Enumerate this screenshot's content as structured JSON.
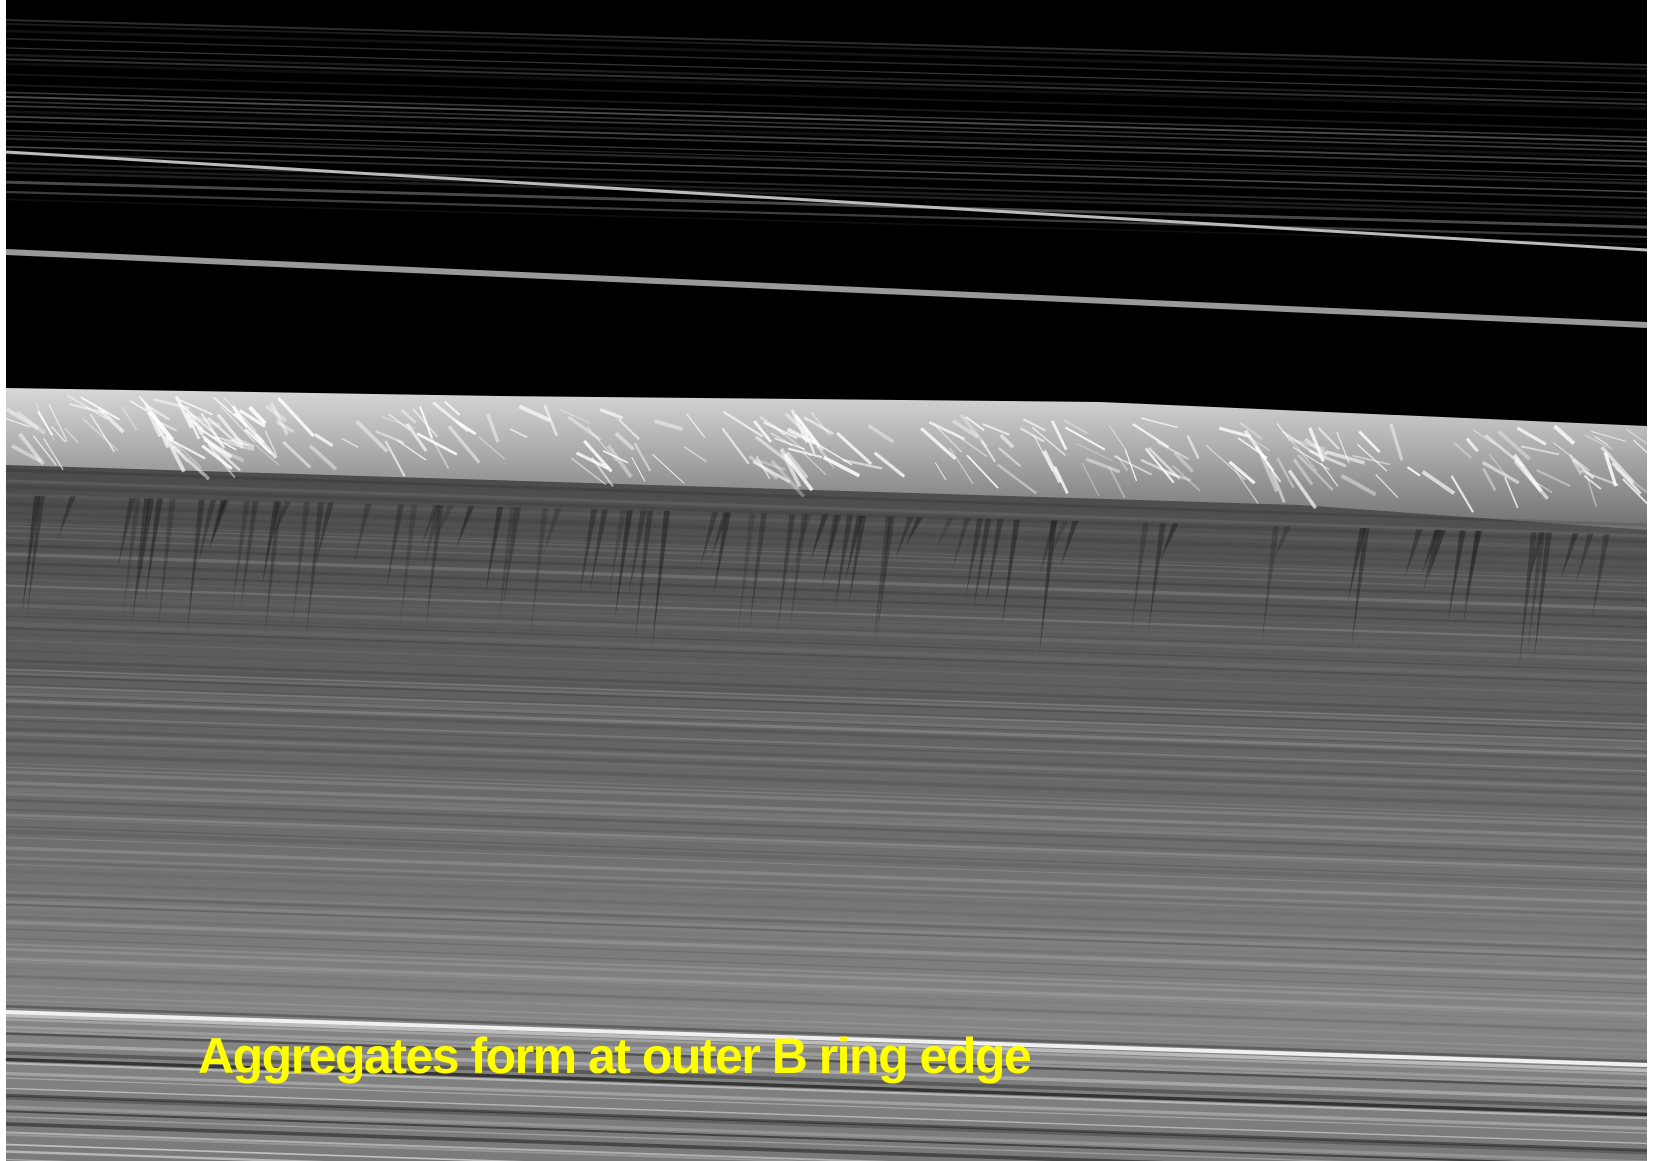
{
  "caption": "Aggregates form at outer B ring edge"
}
